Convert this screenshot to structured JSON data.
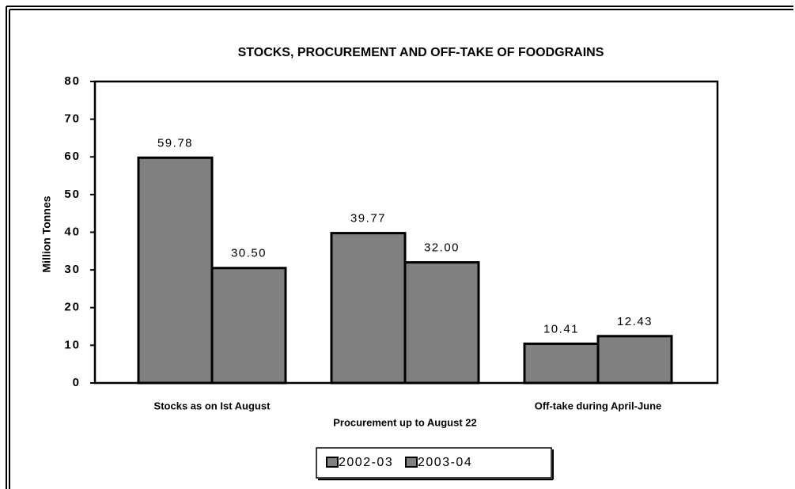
{
  "chart_data": {
    "type": "bar",
    "title": "STOCKS, PROCUREMENT AND OFF-TAKE OF FOODGRAINS",
    "y_label": "Million Tonnes",
    "categories": [
      "Stocks as on Ist August",
      "Procurement up to August 22",
      "Off-take during April-June"
    ],
    "series": [
      {
        "name": "2002-03",
        "color": "#808080",
        "values": [
          59.78,
          39.77,
          10.41
        ],
        "value_labels": [
          "59.78",
          "39.77",
          "10.41"
        ]
      },
      {
        "name": "2003-04",
        "color": "#808080",
        "values": [
          30.5,
          32,
          12.43
        ],
        "value_labels": [
          "30.50",
          "32.00",
          "12.43"
        ]
      }
    ],
    "ylim": [
      0,
      80
    ],
    "yticks": [
      0,
      10,
      20,
      30,
      40,
      50,
      60,
      70,
      80
    ],
    "legend": "bottom"
  }
}
